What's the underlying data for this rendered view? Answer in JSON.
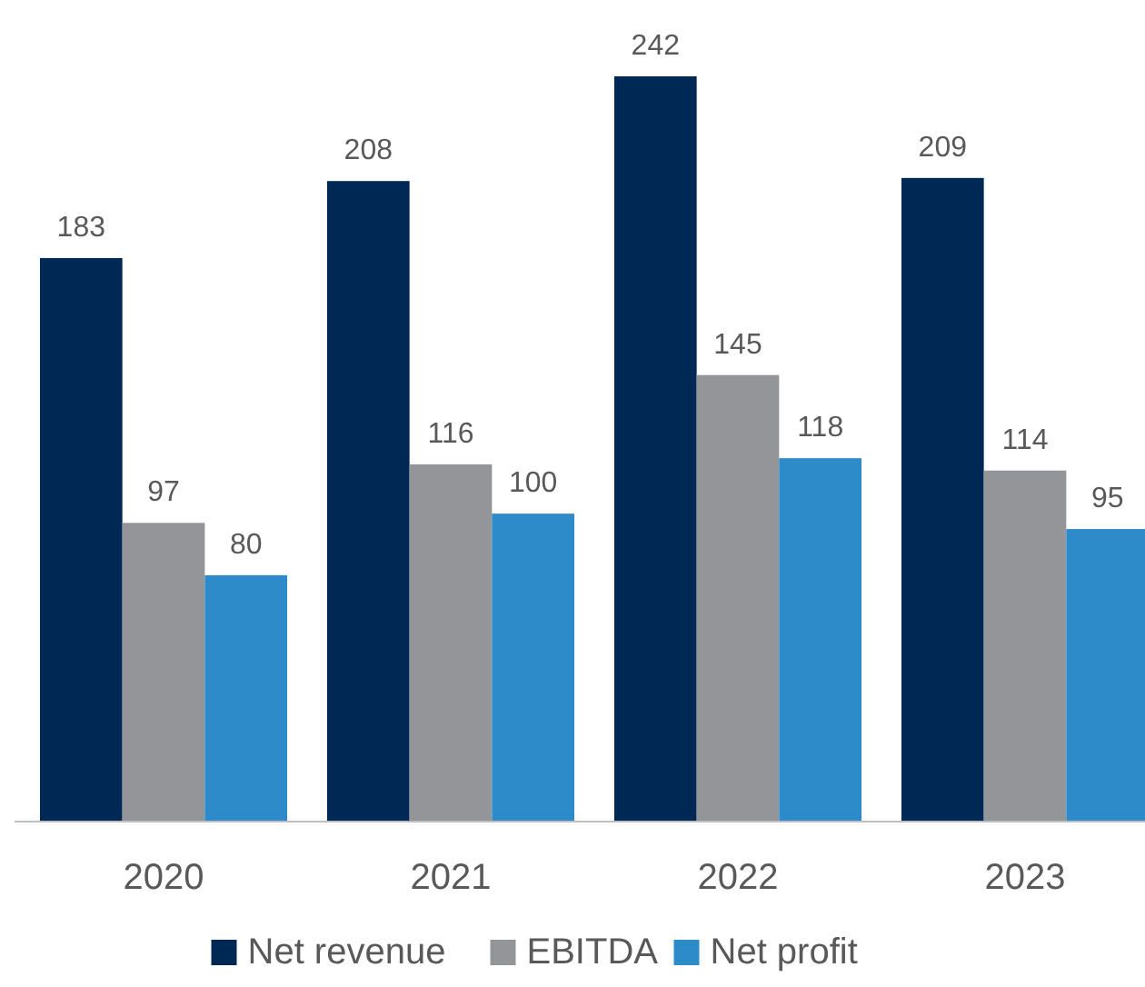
{
  "chart_data": {
    "type": "bar",
    "categories": [
      "2020",
      "2021",
      "2022",
      "2023"
    ],
    "series": [
      {
        "name": "Net revenue",
        "color": "#002855",
        "values": [
          183,
          208,
          242,
          209
        ]
      },
      {
        "name": "EBITDA",
        "color": "#939598",
        "values": [
          97,
          116,
          145,
          114
        ]
      },
      {
        "name": "Net profit",
        "color": "#2e8bc9",
        "values": [
          80,
          100,
          118,
          95
        ]
      }
    ],
    "data_labels": true,
    "legend": "bottom"
  }
}
